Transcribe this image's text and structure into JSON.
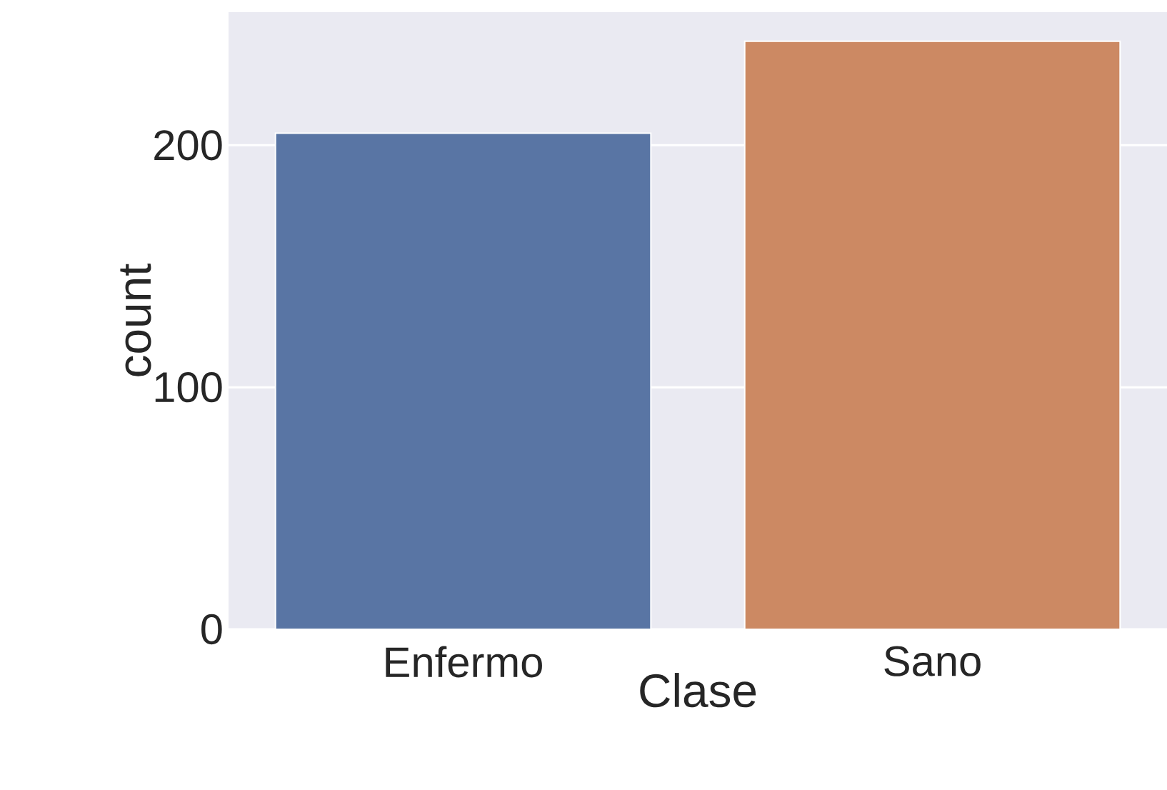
{
  "chart_data": {
    "type": "bar",
    "xlabel": "Clase",
    "ylabel": "count",
    "categories": [
      "Enfermo",
      "Sano"
    ],
    "values": [
      205,
      243
    ],
    "colors": [
      "#5975a4",
      "#cc8963"
    ],
    "ylim": [
      0,
      255
    ],
    "yticks": [
      0,
      100,
      200
    ],
    "grid": "y"
  }
}
